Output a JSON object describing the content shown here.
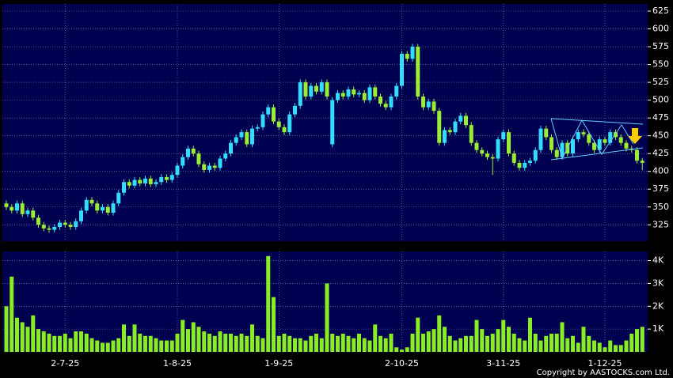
{
  "chart_data": [
    {
      "type": "candlestick",
      "up_color": "#33ddff",
      "down_color": "#99ee33",
      "ylim": [
        302,
        635
      ],
      "yticks": [
        325,
        350,
        375,
        400,
        425,
        450,
        475,
        500,
        525,
        550,
        575,
        600,
        625
      ],
      "grid": true,
      "categories": [
        null,
        null,
        null,
        null,
        null,
        null,
        null,
        null,
        null,
        null,
        null,
        "2-7-25",
        null,
        null,
        null,
        null,
        null,
        null,
        null,
        null,
        null,
        null,
        null,
        null,
        null,
        null,
        null,
        null,
        null,
        null,
        null,
        null,
        "1-8-25",
        null,
        null,
        null,
        null,
        null,
        null,
        null,
        null,
        null,
        null,
        null,
        null,
        null,
        null,
        null,
        null,
        null,
        null,
        "1-9-25",
        null,
        null,
        null,
        null,
        null,
        null,
        null,
        null,
        null,
        null,
        null,
        null,
        null,
        null,
        null,
        null,
        null,
        null,
        null,
        null,
        null,
        null,
        "2-10-25",
        null,
        null,
        null,
        null,
        null,
        null,
        null,
        null,
        null,
        null,
        null,
        null,
        null,
        null,
        null,
        null,
        null,
        null,
        "3-11-25",
        null,
        null,
        null,
        null,
        null,
        null,
        null,
        null,
        null,
        null,
        null,
        null,
        null,
        null,
        null,
        null,
        null,
        null,
        "1-12-25",
        null,
        null,
        null,
        null,
        null,
        null,
        null
      ],
      "open": [
        355,
        350,
        345,
        355,
        340,
        345,
        335,
        325,
        320,
        318,
        322,
        328,
        325,
        322,
        330,
        345,
        360,
        355,
        345,
        350,
        342,
        355,
        370,
        385,
        380,
        388,
        383,
        390,
        382,
        385,
        392,
        388,
        395,
        408,
        420,
        432,
        425,
        410,
        402,
        408,
        405,
        418,
        425,
        440,
        448,
        455,
        438,
        460,
        462,
        480,
        490,
        470,
        462,
        455,
        480,
        492,
        525,
        505,
        520,
        512,
        525,
        438,
        500,
        510,
        505,
        515,
        508,
        510,
        500,
        518,
        505,
        495,
        490,
        505,
        520,
        565,
        558,
        575,
        505,
        490,
        498,
        485,
        440,
        458,
        455,
        470,
        478,
        465,
        440,
        430,
        425,
        420,
        418,
        445,
        455,
        425,
        412,
        405,
        412,
        415,
        430,
        460,
        448,
        430,
        420,
        440,
        425,
        445,
        455,
        452,
        440,
        430,
        445,
        440,
        455,
        448,
        440,
        432,
        430,
        415
      ],
      "high": [
        359,
        354,
        359,
        359,
        349,
        349,
        339,
        329,
        324,
        326,
        332,
        332,
        329,
        334,
        349,
        364,
        364,
        359,
        354,
        354,
        359,
        374,
        389,
        389,
        392,
        392,
        394,
        394,
        389,
        396,
        396,
        399,
        412,
        424,
        436,
        436,
        429,
        414,
        412,
        412,
        422,
        429,
        444,
        452,
        459,
        459,
        464,
        466,
        484,
        494,
        494,
        474,
        466,
        484,
        496,
        529,
        529,
        524,
        524,
        529,
        529,
        504,
        514,
        514,
        519,
        519,
        514,
        514,
        522,
        522,
        509,
        499,
        509,
        524,
        569,
        569,
        579,
        579,
        509,
        502,
        502,
        489,
        462,
        462,
        474,
        482,
        482,
        469,
        444,
        434,
        429,
        424,
        449,
        459,
        459,
        429,
        416,
        416,
        419,
        434,
        464,
        464,
        452,
        434,
        444,
        444,
        449,
        459,
        459,
        456,
        444,
        449,
        449,
        459,
        459,
        452,
        444,
        436,
        434,
        419
      ],
      "low": [
        346,
        341,
        341,
        336,
        336,
        331,
        321,
        316,
        314,
        314,
        318,
        321,
        318,
        318,
        326,
        341,
        351,
        341,
        341,
        338,
        338,
        351,
        366,
        376,
        376,
        379,
        379,
        378,
        378,
        381,
        384,
        384,
        391,
        404,
        416,
        421,
        406,
        398,
        398,
        401,
        401,
        414,
        421,
        436,
        444,
        434,
        434,
        456,
        458,
        476,
        466,
        458,
        451,
        451,
        476,
        488,
        501,
        501,
        508,
        508,
        501,
        434,
        496,
        501,
        501,
        504,
        504,
        496,
        496,
        501,
        491,
        486,
        486,
        501,
        516,
        554,
        554,
        501,
        486,
        486,
        481,
        436,
        436,
        451,
        451,
        466,
        461,
        436,
        426,
        421,
        416,
        395,
        414,
        441,
        421,
        408,
        401,
        401,
        408,
        411,
        426,
        444,
        426,
        416,
        416,
        421,
        421,
        441,
        448,
        436,
        426,
        426,
        436,
        436,
        444,
        436,
        428,
        426,
        411,
        402
      ],
      "close": [
        350,
        345,
        355,
        340,
        345,
        335,
        325,
        320,
        318,
        322,
        328,
        325,
        322,
        330,
        345,
        360,
        355,
        345,
        350,
        342,
        355,
        370,
        385,
        380,
        388,
        383,
        390,
        382,
        385,
        392,
        388,
        395,
        408,
        420,
        432,
        425,
        410,
        402,
        408,
        405,
        418,
        425,
        440,
        448,
        455,
        438,
        460,
        462,
        480,
        490,
        470,
        462,
        455,
        480,
        492,
        525,
        505,
        520,
        512,
        525,
        505,
        500,
        510,
        505,
        515,
        508,
        510,
        500,
        518,
        505,
        495,
        490,
        505,
        520,
        565,
        558,
        575,
        505,
        490,
        498,
        485,
        440,
        458,
        455,
        470,
        478,
        465,
        440,
        430,
        425,
        420,
        418,
        445,
        455,
        425,
        412,
        405,
        412,
        415,
        430,
        460,
        448,
        430,
        420,
        440,
        425,
        445,
        455,
        452,
        440,
        430,
        445,
        440,
        455,
        448,
        440,
        432,
        430,
        415,
        412
      ]
    },
    {
      "type": "bar",
      "color": "#88ee22",
      "ylim": [
        0,
        4400
      ],
      "yticks": [
        {
          "value": 1000,
          "label": "1K"
        },
        {
          "value": 2000,
          "label": "2K"
        },
        {
          "value": 3000,
          "label": "3K"
        },
        {
          "value": 4000,
          "label": "4K"
        }
      ],
      "grid": true,
      "values": [
        2000,
        3300,
        1500,
        1300,
        1100,
        1600,
        1000,
        900,
        800,
        700,
        700,
        800,
        600,
        900,
        900,
        800,
        600,
        500,
        400,
        400,
        500,
        600,
        1200,
        700,
        1200,
        800,
        700,
        700,
        600,
        500,
        500,
        500,
        800,
        1400,
        1000,
        1300,
        1100,
        900,
        800,
        700,
        900,
        800,
        800,
        700,
        800,
        700,
        1200,
        700,
        600,
        4200,
        2400,
        700,
        800,
        700,
        600,
        600,
        500,
        700,
        800,
        600,
        3000,
        800,
        700,
        800,
        700,
        600,
        800,
        600,
        500,
        1200,
        700,
        600,
        800,
        200,
        100,
        200,
        800,
        1500,
        800,
        900,
        1000,
        1600,
        1100,
        700,
        500,
        600,
        700,
        700,
        1400,
        1000,
        700,
        800,
        1000,
        1400,
        1100,
        800,
        600,
        500,
        1500,
        800,
        500,
        700,
        800,
        800,
        1300,
        600,
        700,
        400,
        1100,
        700,
        500,
        400,
        200,
        500,
        300,
        300,
        500,
        800,
        1000,
        1100
      ]
    }
  ],
  "copyright": "Copyright by AASTOCKS.com Ltd."
}
